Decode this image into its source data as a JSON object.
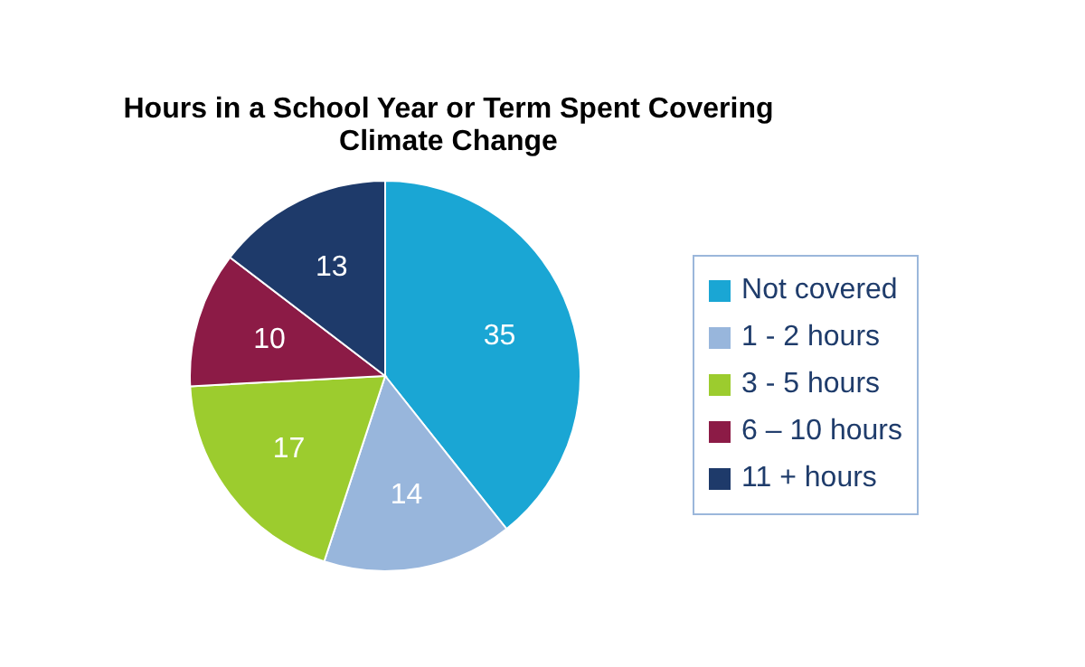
{
  "chart_data": {
    "type": "pie",
    "title": "Hours in a School Year or Term Spent Covering Climate Change",
    "categories": [
      "Not covered",
      "1 - 2 hours",
      "3 - 5 hours",
      "6 – 10 hours",
      "11 + hours"
    ],
    "values": [
      35,
      14,
      17,
      10,
      13
    ],
    "colors": [
      "#1aa6d4",
      "#98b6dc",
      "#9ccc2e",
      "#8c1b46",
      "#1e3a6a"
    ],
    "data_labels": true,
    "legend": "right"
  }
}
